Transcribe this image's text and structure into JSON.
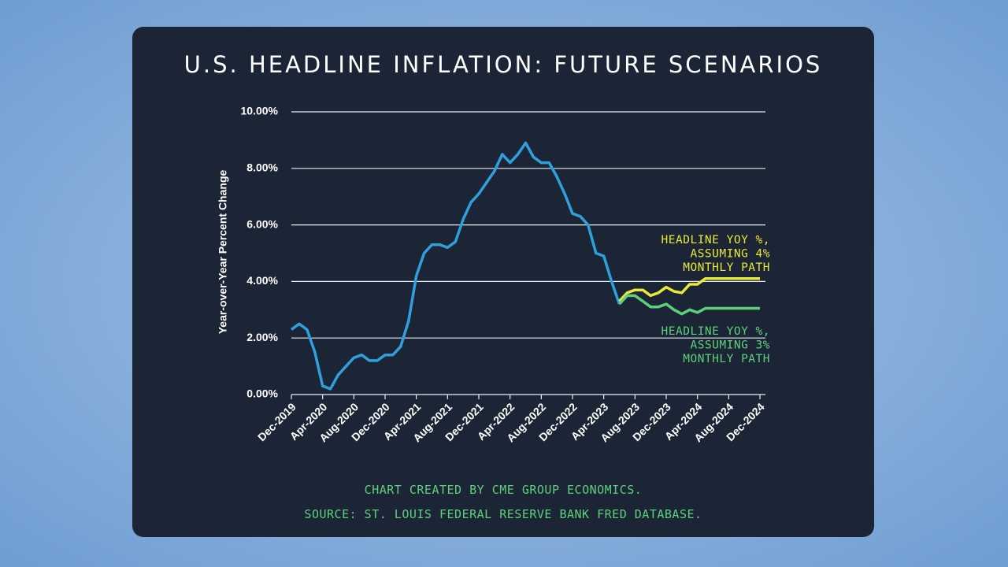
{
  "chart_data": {
    "type": "line",
    "title": "U.S. HEADLINE INFLATION: FUTURE SCENARIOS",
    "y_label": "Year-over-Year Percent Change",
    "categories": [
      "Dec-2019",
      null,
      null,
      null,
      "Apr-2020",
      null,
      null,
      null,
      "Aug-2020",
      null,
      null,
      null,
      "Dec-2020",
      null,
      null,
      null,
      "Apr-2021",
      null,
      null,
      null,
      "Aug-2021",
      null,
      null,
      null,
      "Dec-2021",
      null,
      null,
      null,
      "Apr-2022",
      null,
      null,
      null,
      "Aug-2022",
      null,
      null,
      null,
      "Dec-2022",
      null,
      null,
      null,
      "Apr-2023",
      null,
      null,
      null,
      "Aug-2023",
      null,
      null,
      null,
      "Dec-2023",
      null,
      null,
      null,
      "Apr-2024",
      null,
      null,
      null,
      "Aug-2024",
      null,
      null,
      null,
      "Dec-2024"
    ],
    "series": [
      {
        "color": "#2fa0dc",
        "values": [
          2.3,
          2.5,
          2.3,
          1.5,
          0.3,
          0.2,
          0.7,
          1.0,
          1.3,
          1.4,
          1.2,
          1.2,
          1.4,
          1.4,
          1.7,
          2.6,
          4.2,
          5.0,
          5.3,
          5.3,
          5.2,
          5.4,
          6.2,
          6.8,
          7.1,
          7.5,
          7.9,
          8.5,
          8.2,
          8.5,
          8.9,
          8.4,
          8.2,
          8.2,
          7.7,
          7.1,
          6.4,
          6.3,
          6.0,
          5.0,
          4.9,
          4.0,
          3.2,
          null,
          null,
          null,
          null,
          null,
          null,
          null,
          null,
          null,
          null,
          null,
          null,
          null,
          null,
          null,
          null,
          null,
          null
        ]
      },
      {
        "color": "#e8e83a",
        "values": [
          null,
          null,
          null,
          null,
          null,
          null,
          null,
          null,
          null,
          null,
          null,
          null,
          null,
          null,
          null,
          null,
          null,
          null,
          null,
          null,
          null,
          null,
          null,
          null,
          null,
          null,
          null,
          null,
          null,
          null,
          null,
          null,
          null,
          null,
          null,
          null,
          null,
          null,
          null,
          null,
          null,
          null,
          3.3,
          3.6,
          3.7,
          3.7,
          3.5,
          3.6,
          3.8,
          3.65,
          3.6,
          3.9,
          3.9,
          4.1,
          4.1,
          4.1,
          4.1,
          4.1,
          4.1,
          4.1,
          4.1
        ]
      },
      {
        "color": "#5fd07a",
        "values": [
          null,
          null,
          null,
          null,
          null,
          null,
          null,
          null,
          null,
          null,
          null,
          null,
          null,
          null,
          null,
          null,
          null,
          null,
          null,
          null,
          null,
          null,
          null,
          null,
          null,
          null,
          null,
          null,
          null,
          null,
          null,
          null,
          null,
          null,
          null,
          null,
          null,
          null,
          null,
          null,
          null,
          null,
          3.2,
          3.5,
          3.5,
          3.3,
          3.1,
          3.1,
          3.2,
          3.0,
          2.85,
          3.0,
          2.9,
          3.05,
          3.05,
          3.05,
          3.05,
          3.05,
          3.05,
          3.05,
          3.05
        ]
      }
    ],
    "ylim": [
      0,
      10
    ],
    "yticks": [
      {
        "value": 0,
        "label": "0.00%"
      },
      {
        "value": 2,
        "label": "2.00%"
      },
      {
        "value": 4,
        "label": "4.00%"
      },
      {
        "value": 6,
        "label": "6.00%"
      },
      {
        "value": 8,
        "label": "8.00%"
      },
      {
        "value": 10,
        "label": "10.00%"
      }
    ],
    "grid": true,
    "annotations": [
      {
        "color": "#e8e83a",
        "lines": [
          "HEADLINE YOY %,",
          "ASSUMING 4%",
          "MONTHLY PATH"
        ]
      },
      {
        "color": "#5fd07a",
        "lines": [
          "HEADLINE YOY %,",
          "ASSUMING 3%",
          "MONTHLY PATH"
        ]
      }
    ],
    "notes": [
      "CHART CREATED BY CME GROUP ECONOMICS.",
      "SOURCE: ST. LOUIS FEDERAL RESERVE BANK FRED DATABASE."
    ]
  }
}
